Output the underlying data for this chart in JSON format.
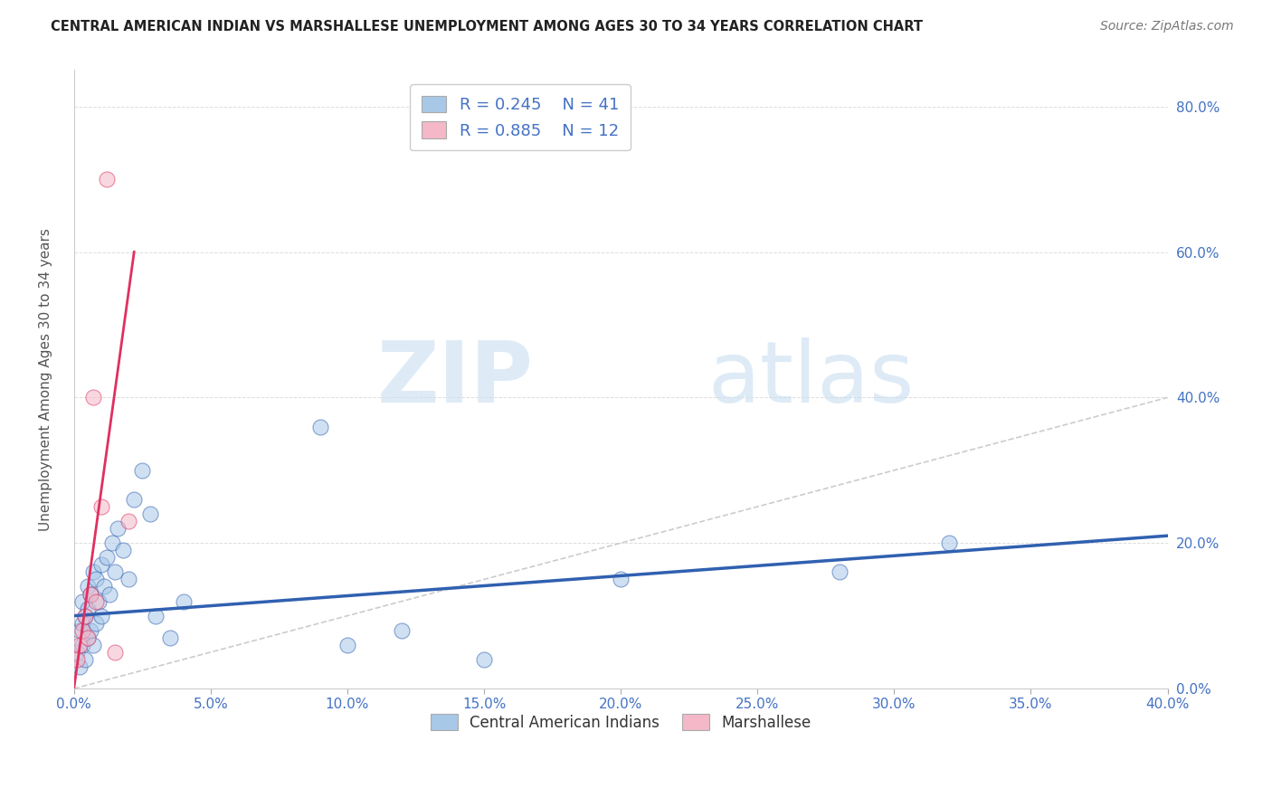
{
  "title": "CENTRAL AMERICAN INDIAN VS MARSHALLESE UNEMPLOYMENT AMONG AGES 30 TO 34 YEARS CORRELATION CHART",
  "source": "Source: ZipAtlas.com",
  "ylabel": "Unemployment Among Ages 30 to 34 years",
  "xlim": [
    0.0,
    0.4
  ],
  "ylim": [
    0.0,
    0.85
  ],
  "x_ticks": [
    0.0,
    0.05,
    0.1,
    0.15,
    0.2,
    0.25,
    0.3,
    0.35,
    0.4
  ],
  "y_ticks": [
    0.0,
    0.2,
    0.4,
    0.6,
    0.8
  ],
  "watermark_zip": "ZIP",
  "watermark_atlas": "atlas",
  "color_blue": "#a8c8e8",
  "color_pink": "#f4b8c8",
  "color_blue_line": "#3060b0",
  "color_pink_line": "#e03060",
  "color_diag_line": "#cccccc",
  "blue_scatter_x": [
    0.001,
    0.002,
    0.002,
    0.003,
    0.003,
    0.003,
    0.004,
    0.004,
    0.005,
    0.005,
    0.005,
    0.006,
    0.006,
    0.007,
    0.007,
    0.008,
    0.008,
    0.009,
    0.01,
    0.01,
    0.011,
    0.012,
    0.013,
    0.014,
    0.015,
    0.016,
    0.018,
    0.02,
    0.022,
    0.025,
    0.028,
    0.03,
    0.035,
    0.04,
    0.09,
    0.1,
    0.12,
    0.15,
    0.2,
    0.28,
    0.32
  ],
  "blue_scatter_y": [
    0.05,
    0.03,
    0.08,
    0.06,
    0.09,
    0.12,
    0.04,
    0.1,
    0.07,
    0.11,
    0.14,
    0.08,
    0.13,
    0.06,
    0.16,
    0.09,
    0.15,
    0.12,
    0.1,
    0.17,
    0.14,
    0.18,
    0.13,
    0.2,
    0.16,
    0.22,
    0.19,
    0.15,
    0.26,
    0.3,
    0.24,
    0.1,
    0.07,
    0.12,
    0.36,
    0.06,
    0.08,
    0.04,
    0.15,
    0.16,
    0.2
  ],
  "pink_scatter_x": [
    0.001,
    0.002,
    0.003,
    0.004,
    0.005,
    0.006,
    0.007,
    0.008,
    0.01,
    0.012,
    0.015,
    0.02
  ],
  "pink_scatter_y": [
    0.04,
    0.06,
    0.08,
    0.1,
    0.07,
    0.13,
    0.4,
    0.12,
    0.25,
    0.7,
    0.05,
    0.23
  ],
  "blue_trend_x": [
    0.0,
    0.4
  ],
  "blue_trend_y": [
    0.1,
    0.21
  ],
  "pink_trend_x": [
    0.0,
    0.022
  ],
  "pink_trend_y": [
    0.0,
    0.6
  ],
  "legend_text1": "R = 0.245    N = 41",
  "legend_text2": "R = 0.885    N = 12",
  "bottom_legend1": "Central American Indians",
  "bottom_legend2": "Marshallese"
}
